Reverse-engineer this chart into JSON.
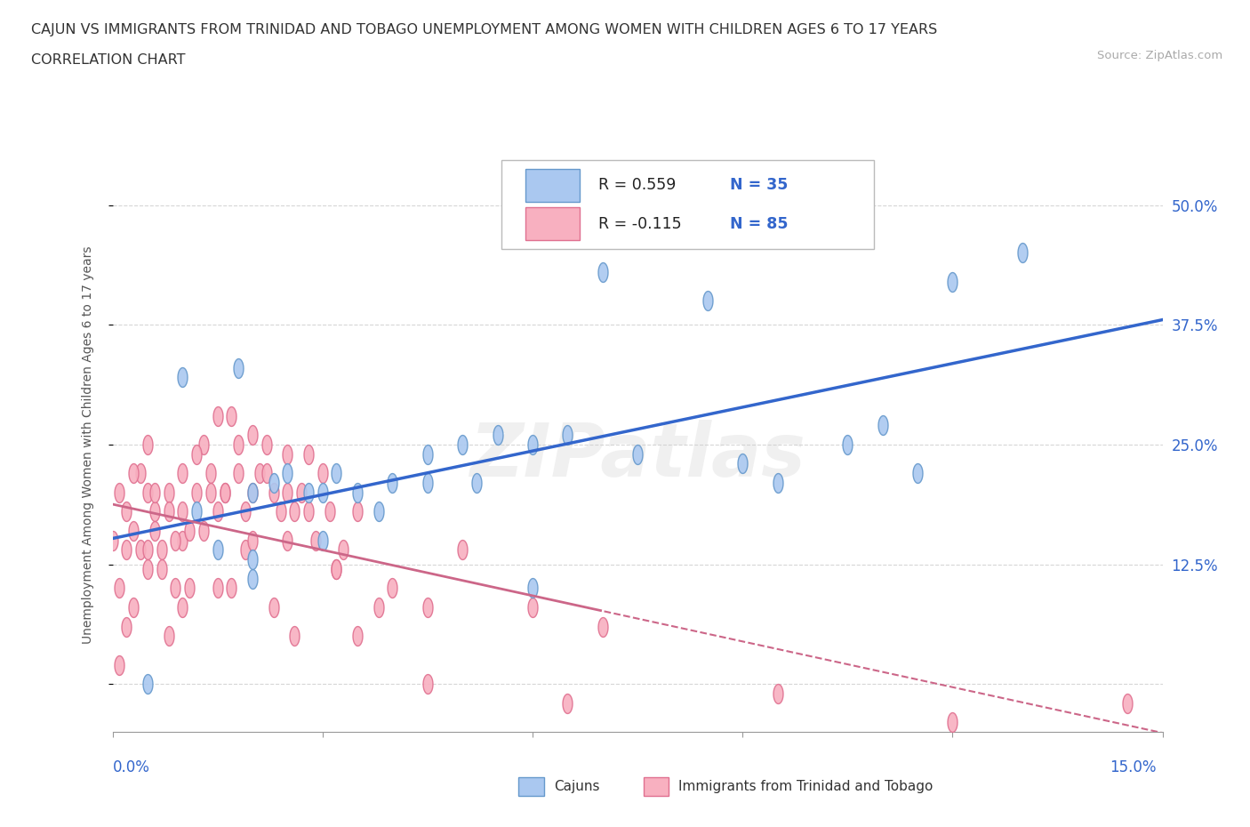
{
  "title_line1": "CAJUN VS IMMIGRANTS FROM TRINIDAD AND TOBAGO UNEMPLOYMENT AMONG WOMEN WITH CHILDREN AGES 6 TO 17 YEARS",
  "title_line2": "CORRELATION CHART",
  "source_text": "Source: ZipAtlas.com",
  "ylabel": "Unemployment Among Women with Children Ages 6 to 17 years",
  "xmin": 0.0,
  "xmax": 15.0,
  "ymin": -5.0,
  "ymax": 55.0,
  "yticks": [
    0.0,
    12.5,
    25.0,
    37.5,
    50.0
  ],
  "ytick_labels": [
    "",
    "12.5%",
    "25.0%",
    "37.5%",
    "50.0%"
  ],
  "watermark": "ZIPatlas",
  "cajun_color": "#aac8f0",
  "cajun_edge_color": "#6699cc",
  "tt_color": "#f8b0c0",
  "tt_edge_color": "#e07090",
  "cajun_line_color": "#3366cc",
  "tt_line_color": "#cc6688",
  "background_color": "#ffffff",
  "grid_color": "#cccccc",
  "title_color": "#333333",
  "blue_label_color": "#3366cc",
  "cajun_x": [
    1.0,
    1.8,
    2.0,
    2.3,
    2.5,
    3.0,
    3.5,
    3.8,
    4.0,
    4.5,
    5.0,
    5.5,
    6.0,
    6.5,
    7.0,
    8.5,
    9.0,
    10.5,
    11.0,
    12.0,
    13.0,
    1.5,
    2.8,
    2.0,
    1.2,
    3.2,
    4.5,
    5.2,
    6.0,
    3.0,
    2.0,
    7.5,
    11.5,
    0.5,
    9.5
  ],
  "cajun_y": [
    32.0,
    33.0,
    20.0,
    21.0,
    22.0,
    20.0,
    20.0,
    18.0,
    21.0,
    24.0,
    25.0,
    26.0,
    25.0,
    26.0,
    43.0,
    40.0,
    23.0,
    25.0,
    27.0,
    42.0,
    45.0,
    14.0,
    20.0,
    11.0,
    18.0,
    22.0,
    21.0,
    21.0,
    10.0,
    15.0,
    13.0,
    24.0,
    22.0,
    0.0,
    21.0
  ],
  "tt_x": [
    0.0,
    0.1,
    0.2,
    0.3,
    0.4,
    0.5,
    0.5,
    0.6,
    0.7,
    0.8,
    0.9,
    1.0,
    1.0,
    1.0,
    1.1,
    1.2,
    1.3,
    1.4,
    1.5,
    1.5,
    1.6,
    1.7,
    1.8,
    1.9,
    2.0,
    2.0,
    2.1,
    2.2,
    2.3,
    2.4,
    2.5,
    2.5,
    2.6,
    2.7,
    2.8,
    2.9,
    3.0,
    3.1,
    3.2,
    3.3,
    3.5,
    3.8,
    4.0,
    4.5,
    5.0,
    6.0,
    7.0,
    0.3,
    0.6,
    1.2,
    0.8,
    1.4,
    2.2,
    1.8,
    0.5,
    0.2,
    0.9,
    1.6,
    2.5,
    3.2,
    0.1,
    0.4,
    0.7,
    1.1,
    1.9,
    0.6,
    1.3,
    2.0,
    2.8,
    0.5,
    1.5,
    0.3,
    2.3,
    3.5,
    1.7,
    2.6,
    0.8,
    0.1,
    4.5,
    6.5,
    9.5,
    12.0,
    14.5,
    1.0,
    0.2
  ],
  "tt_y": [
    15.0,
    20.0,
    18.0,
    16.0,
    22.0,
    20.0,
    25.0,
    18.0,
    14.0,
    20.0,
    10.0,
    22.0,
    15.0,
    18.0,
    16.0,
    20.0,
    25.0,
    22.0,
    18.0,
    28.0,
    20.0,
    28.0,
    22.0,
    18.0,
    26.0,
    20.0,
    22.0,
    25.0,
    20.0,
    18.0,
    24.0,
    15.0,
    18.0,
    20.0,
    24.0,
    15.0,
    22.0,
    18.0,
    12.0,
    14.0,
    18.0,
    8.0,
    10.0,
    8.0,
    14.0,
    8.0,
    6.0,
    22.0,
    16.0,
    24.0,
    18.0,
    20.0,
    22.0,
    25.0,
    12.0,
    14.0,
    15.0,
    20.0,
    20.0,
    12.0,
    10.0,
    14.0,
    12.0,
    10.0,
    14.0,
    20.0,
    16.0,
    15.0,
    18.0,
    14.0,
    10.0,
    8.0,
    8.0,
    5.0,
    10.0,
    5.0,
    5.0,
    2.0,
    0.0,
    -2.0,
    -1.0,
    -4.0,
    -2.0,
    8.0,
    6.0
  ]
}
